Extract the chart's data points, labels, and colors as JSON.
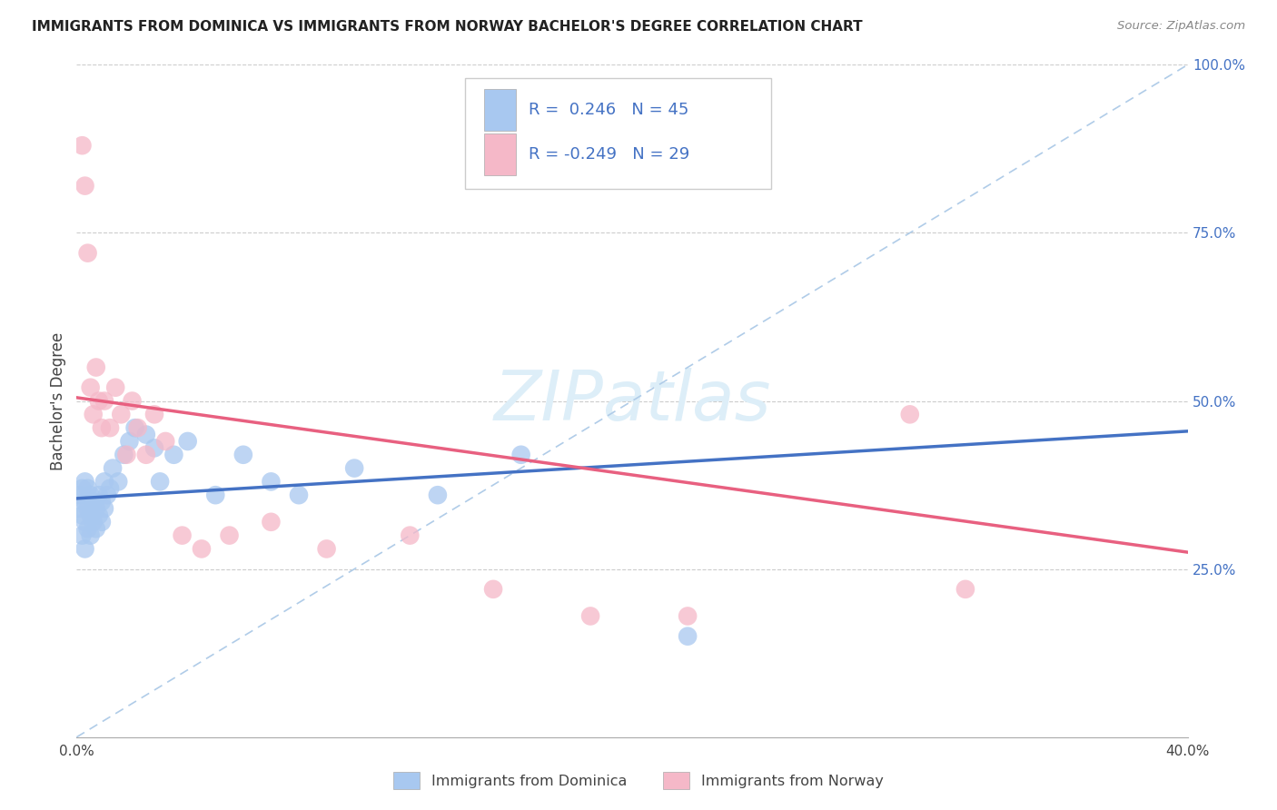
{
  "title": "IMMIGRANTS FROM DOMINICA VS IMMIGRANTS FROM NORWAY BACHELOR'S DEGREE CORRELATION CHART",
  "source": "Source: ZipAtlas.com",
  "ylabel": "Bachelor's Degree",
  "legend_label1": "Immigrants from Dominica",
  "legend_label2": "Immigrants from Norway",
  "R1": 0.246,
  "N1": 45,
  "R2": -0.249,
  "N2": 29,
  "blue_scatter": "#A8C8F0",
  "pink_scatter": "#F5B8C8",
  "blue_line": "#4472C4",
  "pink_line": "#E86080",
  "dashed_color": "#B0CCE8",
  "xlim": [
    0.0,
    0.4
  ],
  "ylim": [
    0.0,
    1.0
  ],
  "blue_trend_x0": 0.0,
  "blue_trend_y0": 0.355,
  "blue_trend_x1": 0.4,
  "blue_trend_y1": 0.455,
  "pink_trend_x0": 0.0,
  "pink_trend_y0": 0.505,
  "pink_trend_x1": 0.4,
  "pink_trend_y1": 0.275,
  "dominica_x": [
    0.001,
    0.001,
    0.002,
    0.002,
    0.002,
    0.003,
    0.003,
    0.003,
    0.003,
    0.004,
    0.004,
    0.004,
    0.005,
    0.005,
    0.005,
    0.006,
    0.006,
    0.007,
    0.007,
    0.008,
    0.008,
    0.009,
    0.009,
    0.01,
    0.01,
    0.011,
    0.012,
    0.013,
    0.015,
    0.017,
    0.019,
    0.021,
    0.025,
    0.028,
    0.03,
    0.035,
    0.04,
    0.05,
    0.06,
    0.07,
    0.08,
    0.1,
    0.13,
    0.16,
    0.22
  ],
  "dominica_y": [
    0.34,
    0.36,
    0.3,
    0.33,
    0.37,
    0.28,
    0.32,
    0.35,
    0.38,
    0.31,
    0.34,
    0.37,
    0.3,
    0.33,
    0.36,
    0.32,
    0.35,
    0.31,
    0.34,
    0.33,
    0.36,
    0.32,
    0.35,
    0.34,
    0.38,
    0.36,
    0.37,
    0.4,
    0.38,
    0.42,
    0.44,
    0.46,
    0.45,
    0.43,
    0.38,
    0.42,
    0.44,
    0.36,
    0.42,
    0.38,
    0.36,
    0.4,
    0.36,
    0.42,
    0.15
  ],
  "norway_x": [
    0.002,
    0.003,
    0.004,
    0.005,
    0.006,
    0.007,
    0.008,
    0.009,
    0.01,
    0.012,
    0.014,
    0.016,
    0.018,
    0.02,
    0.022,
    0.025,
    0.028,
    0.032,
    0.038,
    0.045,
    0.055,
    0.07,
    0.09,
    0.12,
    0.15,
    0.185,
    0.22,
    0.3,
    0.32
  ],
  "norway_y": [
    0.88,
    0.82,
    0.72,
    0.52,
    0.48,
    0.55,
    0.5,
    0.46,
    0.5,
    0.46,
    0.52,
    0.48,
    0.42,
    0.5,
    0.46,
    0.42,
    0.48,
    0.44,
    0.3,
    0.28,
    0.3,
    0.32,
    0.28,
    0.3,
    0.22,
    0.18,
    0.18,
    0.48,
    0.22
  ]
}
